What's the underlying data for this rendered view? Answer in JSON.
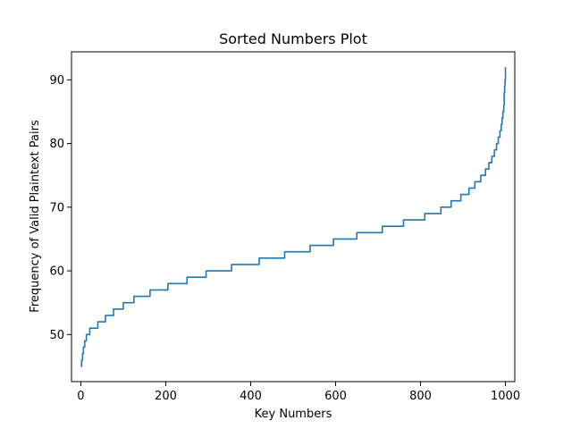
{
  "chart_data": {
    "type": "line",
    "title": "Sorted Numbers Plot",
    "xlabel": "Key Numbers",
    "ylabel": "Frequency of Valid Plaintext Pairs",
    "xlim": [
      -22,
      1022
    ],
    "ylim": [
      42.6,
      94.4
    ],
    "xticks": [
      0,
      200,
      400,
      600,
      800,
      1000
    ],
    "yticks": [
      50,
      60,
      70,
      80,
      90
    ],
    "xtick_labels": [
      "0",
      "200",
      "400",
      "600",
      "800",
      "1000"
    ],
    "ytick_labels": [
      "50",
      "60",
      "70",
      "80",
      "90"
    ],
    "grid": false,
    "color": "#1f77b4",
    "series": [
      {
        "x": [
          0,
          2,
          4,
          6,
          9,
          13,
          21,
          40,
          58,
          77,
          100,
          125,
          163,
          205,
          250,
          295,
          355,
          420,
          480,
          540,
          595,
          650,
          710,
          760,
          810,
          848,
          872,
          895,
          914,
          928,
          942,
          953,
          961,
          968,
          974,
          979,
          983,
          987,
          990,
          992,
          994,
          996,
          997,
          998,
          999,
          1000
        ],
        "y": [
          45,
          46,
          47,
          48,
          49,
          50,
          51,
          52,
          53,
          54,
          55,
          56,
          57,
          58,
          59,
          60,
          61,
          62,
          63,
          64,
          65,
          66,
          67,
          68,
          69,
          70,
          71,
          72,
          73,
          74,
          75,
          76,
          77,
          78,
          79,
          80,
          81,
          82,
          83,
          84,
          85,
          86,
          88,
          89,
          90,
          92
        ]
      }
    ]
  }
}
